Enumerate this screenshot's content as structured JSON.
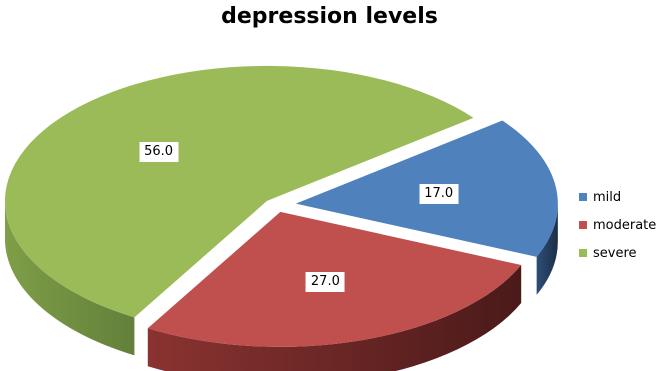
{
  "chart_data": {
    "type": "pie",
    "title": "depression levels",
    "categories": [
      "mild",
      "moderate",
      "severe"
    ],
    "values": [
      17.0,
      27.0,
      56.0
    ],
    "value_labels": [
      "17.0",
      "27.0",
      "56.0"
    ],
    "colors": [
      "#4F81BD",
      "#C0504D",
      "#9BBB59"
    ],
    "exploded": "all",
    "style": "3d",
    "legend_placement": "right"
  }
}
